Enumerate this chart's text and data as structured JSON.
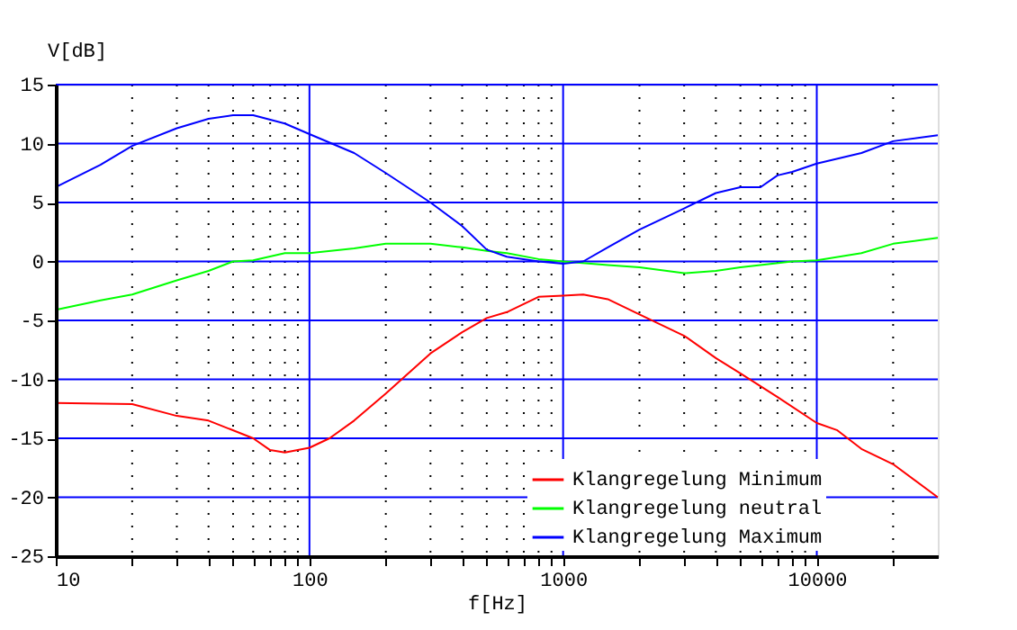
{
  "chart_data": {
    "type": "line",
    "xlabel": "f[Hz]",
    "ylabel": "V[dB]",
    "log": "x",
    "xlim": [
      10,
      30000
    ],
    "ylim": [
      -25,
      15
    ],
    "xticks": [
      10,
      {
        "value": 20,
        "label": null
      },
      {
        "value": 30,
        "label": null
      },
      {
        "value": 40,
        "label": null
      },
      {
        "value": 50,
        "label": null
      },
      {
        "value": 60,
        "label": null
      },
      {
        "value": 70,
        "label": null
      },
      {
        "value": 80,
        "label": null
      },
      {
        "value": 90,
        "label": null
      },
      100,
      {
        "value": 200,
        "label": null
      },
      {
        "value": 300,
        "label": null
      },
      {
        "value": 400,
        "label": null
      },
      {
        "value": 500,
        "label": null
      },
      {
        "value": 600,
        "label": null
      },
      {
        "value": 700,
        "label": null
      },
      {
        "value": 800,
        "label": null
      },
      {
        "value": 900,
        "label": null
      },
      1000,
      {
        "value": 2000,
        "label": null
      },
      {
        "value": 3000,
        "label": null
      },
      {
        "value": 4000,
        "label": null
      },
      {
        "value": 5000,
        "label": null
      },
      {
        "value": 6000,
        "label": null
      },
      {
        "value": 7000,
        "label": null
      },
      {
        "value": 8000,
        "label": null
      },
      {
        "value": 9000,
        "label": null
      },
      10000,
      {
        "value": 20000,
        "label": null
      }
    ],
    "yticks": [
      -25,
      -20,
      -15,
      -10,
      -5,
      0,
      5,
      10,
      15
    ],
    "grid": true,
    "legend": "bottom right",
    "line_style": "solid",
    "marker": "none",
    "series": [
      {
        "name": "Klangregelung Minimum",
        "color": "#ff0000",
        "x": [
          10,
          20,
          30,
          40,
          60,
          70,
          80,
          100,
          120,
          150,
          200,
          300,
          400,
          500,
          600,
          800,
          1000,
          1200,
          1500,
          2000,
          3000,
          4000,
          5000,
          7000,
          10000,
          12000,
          15000,
          20000,
          30000
        ],
        "values": [
          -12,
          -12.1,
          -13.1,
          -13.5,
          -15,
          -16,
          -16.2,
          -15.8,
          -15,
          -13.5,
          -11.2,
          -7.8,
          -6,
          -4.8,
          -4.3,
          -3,
          -2.9,
          -2.8,
          -3.2,
          -4.5,
          -6.3,
          -8.2,
          -9.5,
          -11.5,
          -13.7,
          -14.3,
          -15.9,
          -17.2,
          -20
        ]
      },
      {
        "name": "Klangregelung neutral",
        "color": "#00ff00",
        "x": [
          10,
          15,
          20,
          30,
          40,
          50,
          60,
          80,
          100,
          150,
          200,
          300,
          400,
          500,
          600,
          800,
          1000,
          1500,
          2000,
          3000,
          4000,
          5000,
          8000,
          10000,
          15000,
          20000,
          30000
        ],
        "values": [
          -4.1,
          -3.3,
          -2.8,
          -1.6,
          -0.8,
          0,
          0.1,
          0.7,
          0.7,
          1.1,
          1.5,
          1.5,
          1.2,
          0.9,
          0.7,
          0.2,
          0,
          -0.3,
          -0.5,
          -1,
          -0.8,
          -0.5,
          0,
          0.1,
          0.7,
          1.5,
          2
        ]
      },
      {
        "name": "Klangregelung Maximum",
        "color": "#0000ff",
        "x": [
          10,
          15,
          20,
          30,
          40,
          50,
          60,
          80,
          100,
          150,
          200,
          300,
          400,
          500,
          600,
          800,
          1000,
          1200,
          1500,
          2000,
          3000,
          4000,
          5000,
          6000,
          7000,
          8000,
          10000,
          15000,
          20000,
          30000
        ],
        "values": [
          6.3,
          8.2,
          9.8,
          11.3,
          12.1,
          12.4,
          12.4,
          11.7,
          10.8,
          9.2,
          7.5,
          5,
          3,
          1,
          0.4,
          0,
          -0.2,
          0,
          1.2,
          2.7,
          4.5,
          5.8,
          6.3,
          6.3,
          7.3,
          7.6,
          8.3,
          9.2,
          10.2,
          10.7
        ]
      }
    ]
  }
}
